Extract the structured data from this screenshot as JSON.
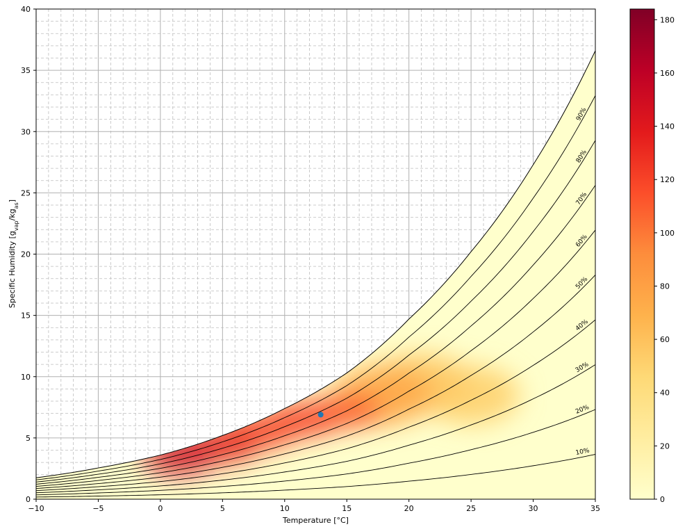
{
  "chart_data": {
    "type": "heatmap",
    "title": "",
    "xlabel": "Temperature [°C]",
    "ylabel_main": "Specific Humidity [g",
    "ylabel_sub1": "vap",
    "ylabel_mid": "/kg",
    "ylabel_sub2": "as",
    "ylabel_end": "]",
    "xlim": [
      -10,
      35
    ],
    "ylim": [
      0,
      40
    ],
    "x_ticks": [
      -10,
      -5,
      0,
      5,
      10,
      15,
      20,
      25,
      30,
      35
    ],
    "x_tick_labels": [
      "−10",
      "−5",
      "0",
      "5",
      "10",
      "15",
      "20",
      "25",
      "30",
      "35"
    ],
    "y_ticks": [
      0,
      5,
      10,
      15,
      20,
      25,
      30,
      35,
      40
    ],
    "y_tick_labels": [
      "0",
      "5",
      "10",
      "15",
      "20",
      "25",
      "30",
      "35",
      "40"
    ],
    "grid": true,
    "minor_grid": true,
    "saturation_curve": {
      "x": [
        -10,
        -5,
        0,
        5,
        10,
        15,
        20,
        25,
        30,
        35
      ],
      "y": [
        1.75,
        2.55,
        3.6,
        5.2,
        7.4,
        10.3,
        14.7,
        20.2,
        27.3,
        36.6
      ]
    },
    "rh_curves": [
      10,
      20,
      30,
      40,
      50,
      60,
      70,
      80,
      90
    ],
    "rh_labels": [
      "10%",
      "20%",
      "30%",
      "40%",
      "50%",
      "60%",
      "70%",
      "80%",
      "90%"
    ],
    "density_blobs": [
      {
        "x": 1.5,
        "y": 3.5,
        "value": 150
      },
      {
        "x": 5,
        "y": 4.4,
        "value": 135
      },
      {
        "x": 8,
        "y": 5.5,
        "value": 120
      },
      {
        "x": 11.5,
        "y": 6.5,
        "value": 120
      },
      {
        "x": 15,
        "y": 7.2,
        "value": 110
      },
      {
        "x": 18,
        "y": 8.5,
        "value": 75
      },
      {
        "x": 21,
        "y": 9.5,
        "value": 55
      },
      {
        "x": 25,
        "y": 8.5,
        "value": 50
      }
    ],
    "marker": {
      "x": 12.9,
      "y": 6.9,
      "color": "#1f77b4"
    },
    "colorbar": {
      "min": 0,
      "max": 184,
      "ticks": [
        0,
        20,
        40,
        60,
        80,
        100,
        120,
        140,
        160,
        180
      ],
      "tick_labels": [
        "0",
        "20",
        "40",
        "60",
        "80",
        "100",
        "120",
        "140",
        "160",
        "180"
      ],
      "colormap": "YlOrRd"
    }
  }
}
